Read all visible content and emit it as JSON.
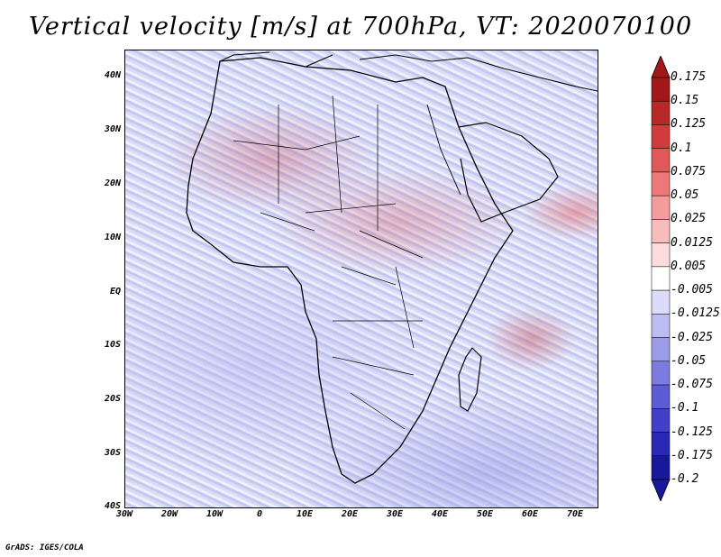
{
  "title": "Vertical velocity [m/s] at 700hPa, VT: 2020070100",
  "credit": "GrADS: IGES/COLA",
  "map": {
    "region": "Africa and surroundings",
    "lon_range": [
      -30,
      75
    ],
    "lat_range": [
      -40,
      45
    ],
    "lat_ticks": [
      "40N",
      "30N",
      "20N",
      "10N",
      "EQ",
      "10S",
      "20S",
      "30S",
      "40S"
    ],
    "lon_ticks": [
      "30W",
      "20W",
      "10W",
      "0",
      "10E",
      "20E",
      "30E",
      "40E",
      "50E",
      "60E",
      "70E"
    ]
  },
  "colorbar": {
    "labels": [
      "0.175",
      "0.15",
      "0.125",
      "0.1",
      "0.075",
      "0.05",
      "0.025",
      "0.0125",
      "0.005",
      "-0.005",
      "-0.0125",
      "-0.025",
      "-0.05",
      "-0.075",
      "-0.1",
      "-0.125",
      "-0.175",
      "-0.2"
    ],
    "colors": [
      "#a01818",
      "#b82828",
      "#d03c3c",
      "#e05858",
      "#ec7878",
      "#f49c9c",
      "#f8bcbc",
      "#fcdcdc",
      "#ffffff",
      "#dcdcf8",
      "#bcbcf0",
      "#9c9ce8",
      "#7c7ce0",
      "#5c5cd4",
      "#4040c8",
      "#2828b4",
      "#18189c"
    ],
    "top_arrow_color": "#a01818",
    "bottom_arrow_color": "#18189c"
  }
}
